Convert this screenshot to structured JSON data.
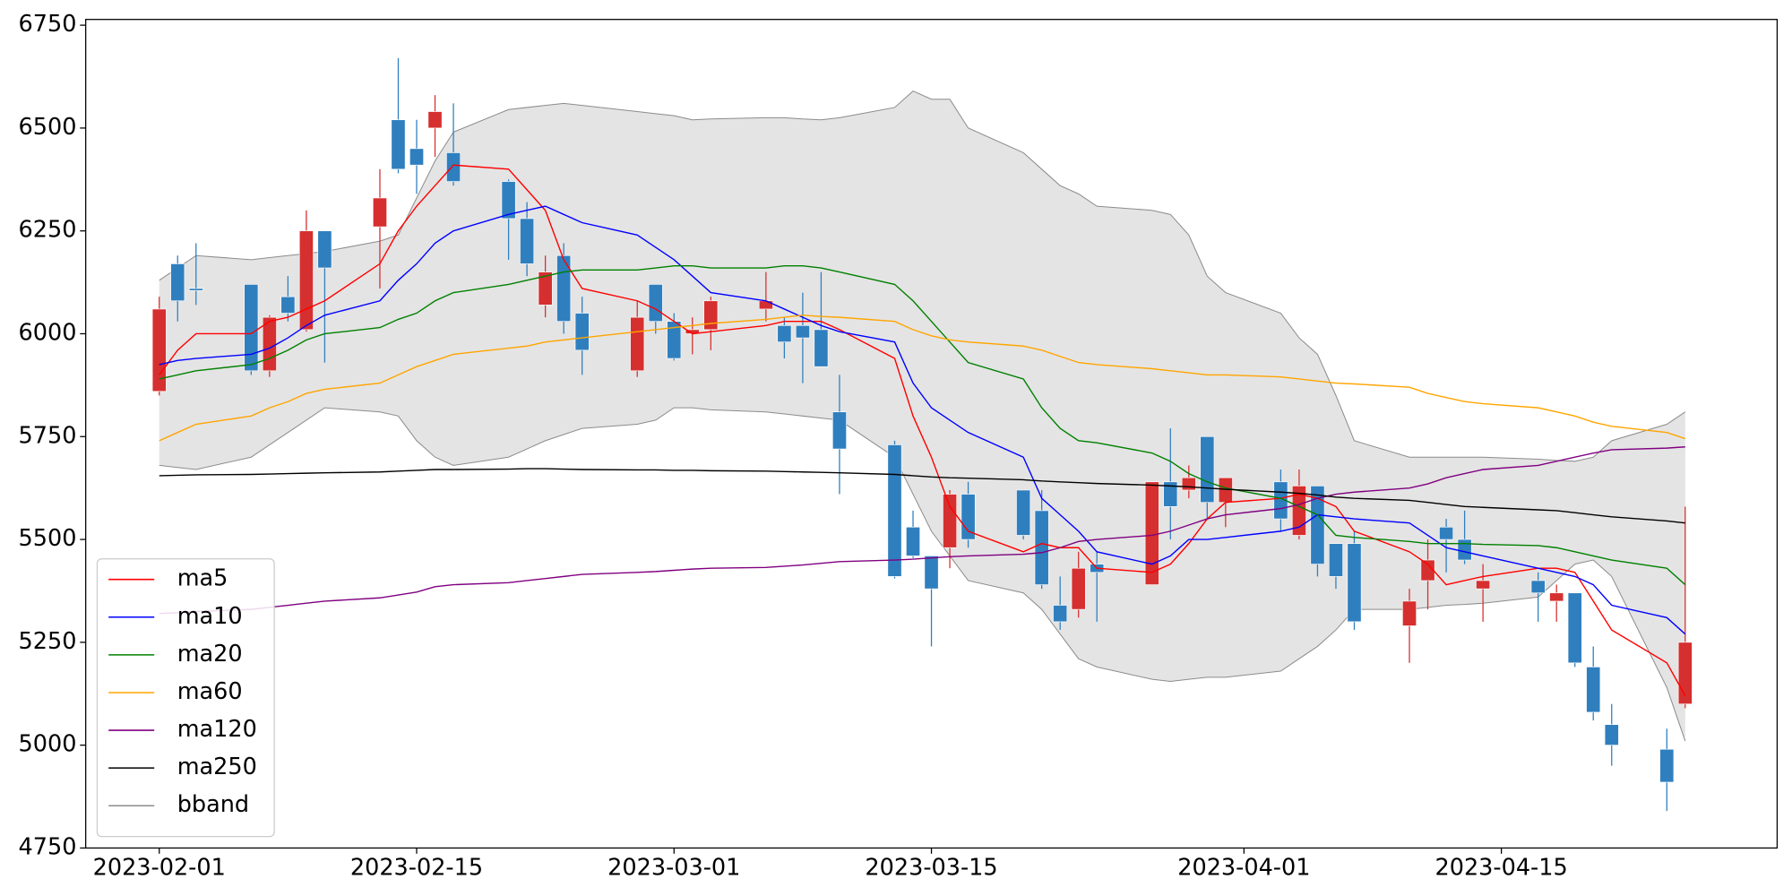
{
  "chart_data": {
    "type": "candlestick",
    "x": [
      "2023-02-01",
      "2023-02-02",
      "2023-02-03",
      "2023-02-06",
      "2023-02-07",
      "2023-02-08",
      "2023-02-09",
      "2023-02-10",
      "2023-02-13",
      "2023-02-14",
      "2023-02-15",
      "2023-02-16",
      "2023-02-17",
      "2023-02-20",
      "2023-02-21",
      "2023-02-22",
      "2023-02-23",
      "2023-02-24",
      "2023-02-27",
      "2023-02-28",
      "2023-03-01",
      "2023-03-02",
      "2023-03-03",
      "2023-03-06",
      "2023-03-07",
      "2023-03-08",
      "2023-03-09",
      "2023-03-10",
      "2023-03-13",
      "2023-03-14",
      "2023-03-15",
      "2023-03-16",
      "2023-03-17",
      "2023-03-20",
      "2023-03-21",
      "2023-03-22",
      "2023-03-23",
      "2023-03-24",
      "2023-03-27",
      "2023-03-28",
      "2023-03-29",
      "2023-03-30",
      "2023-03-31",
      "2023-04-03",
      "2023-04-04",
      "2023-04-05",
      "2023-04-06",
      "2023-04-07",
      "2023-04-10",
      "2023-04-11",
      "2023-04-12",
      "2023-04-13",
      "2023-04-14",
      "2023-04-17",
      "2023-04-18",
      "2023-04-19",
      "2023-04-20",
      "2023-04-21",
      "2023-04-24",
      "2023-04-25"
    ],
    "open": [
      5860,
      6170,
      6110,
      6120,
      5910,
      6090,
      6010,
      6250,
      6260,
      6520,
      6450,
      6500,
      6440,
      6370,
      6280,
      6070,
      6190,
      6050,
      5910,
      6120,
      6030,
      6000,
      6010,
      6060,
      6020,
      6020,
      6010,
      5810,
      5730,
      5530,
      5460,
      5480,
      5610,
      5620,
      5570,
      5340,
      5330,
      5440,
      5390,
      5640,
      5620,
      5750,
      5590,
      5640,
      5510,
      5630,
      5490,
      5490,
      5290,
      5400,
      5530,
      5500,
      5380,
      5400,
      5350,
      5370,
      5190,
      5050,
      4990,
      5100
    ],
    "high": [
      6090,
      6190,
      6220,
      6120,
      6045,
      6140,
      6300,
      6250,
      6400,
      6670,
      6520,
      6580,
      6560,
      6375,
      6320,
      6190,
      6220,
      6090,
      6080,
      6120,
      6050,
      6040,
      6090,
      6150,
      6040,
      6100,
      6150,
      5900,
      5740,
      5570,
      5460,
      5620,
      5640,
      5620,
      5620,
      5410,
      5470,
      5470,
      5640,
      5770,
      5680,
      5750,
      5650,
      5670,
      5670,
      5630,
      5490,
      5520,
      5380,
      5500,
      5550,
      5570,
      5440,
      5420,
      5390,
      5370,
      5240,
      5100,
      5040,
      5580
    ],
    "low": [
      5850,
      6030,
      6070,
      5900,
      5895,
      6030,
      6005,
      5930,
      6110,
      6390,
      6340,
      6430,
      6360,
      6180,
      6140,
      6040,
      6000,
      5900,
      5895,
      6000,
      5935,
      5950,
      5960,
      6030,
      5940,
      5880,
      5920,
      5610,
      5405,
      5455,
      5240,
      5430,
      5480,
      5500,
      5380,
      5280,
      5310,
      5300,
      5390,
      5500,
      5600,
      5550,
      5530,
      5520,
      5500,
      5410,
      5380,
      5280,
      5200,
      5330,
      5420,
      5440,
      5300,
      5300,
      5300,
      5190,
      5060,
      4950,
      4840,
      5090
    ],
    "close": [
      6060,
      6080,
      6105,
      5910,
      6040,
      6050,
      6250,
      6160,
      6330,
      6400,
      6410,
      6540,
      6370,
      6280,
      6170,
      6150,
      6030,
      5960,
      6040,
      6030,
      5940,
      6010,
      6080,
      6080,
      5980,
      5990,
      5920,
      5720,
      5410,
      5460,
      5380,
      5610,
      5500,
      5510,
      5390,
      5300,
      5430,
      5420,
      5640,
      5580,
      5650,
      5590,
      5650,
      5550,
      5630,
      5440,
      5410,
      5300,
      5350,
      5450,
      5500,
      5450,
      5400,
      5370,
      5370,
      5200,
      5080,
      5000,
      4910,
      5250
    ],
    "up_color": "#d62f2f",
    "down_color": "#2f7fbf",
    "series": [
      {
        "name": "ma5",
        "color": "#ff0000",
        "values": [
          5900,
          5960,
          6000,
          6000,
          6030,
          6040,
          6060,
          6080,
          6170,
          6250,
          6310,
          6360,
          6410,
          6400,
          6350,
          6300,
          6180,
          6110,
          6080,
          6060,
          6030,
          6000,
          6005,
          6020,
          6030,
          6030,
          6030,
          6010,
          5940,
          5800,
          5700,
          5580,
          5520,
          5470,
          5490,
          5480,
          5480,
          5430,
          5420,
          5440,
          5490,
          5550,
          5590,
          5600,
          5610,
          5600,
          5580,
          5520,
          5470,
          5440,
          5390,
          5400,
          5410,
          5430,
          5430,
          5420,
          5350,
          5280,
          5200,
          5120
        ]
      },
      {
        "name": "ma10",
        "color": "#0000ff",
        "values": [
          5925,
          5935,
          5940,
          5950,
          5965,
          5990,
          6020,
          6045,
          6080,
          6130,
          6170,
          6220,
          6250,
          6290,
          6300,
          6310,
          6290,
          6270,
          6240,
          6210,
          6180,
          6140,
          6100,
          6080,
          6060,
          6040,
          6020,
          6005,
          5980,
          5880,
          5820,
          5790,
          5760,
          5700,
          5600,
          5560,
          5520,
          5470,
          5440,
          5460,
          5500,
          5500,
          5505,
          5520,
          5530,
          5560,
          5555,
          5550,
          5540,
          5510,
          5480,
          5470,
          5460,
          5430,
          5420,
          5410,
          5390,
          5340,
          5310,
          5270
        ]
      },
      {
        "name": "ma20",
        "color": "#008000",
        "values": [
          5890,
          5900,
          5910,
          5925,
          5940,
          5960,
          5985,
          6000,
          6015,
          6035,
          6050,
          6080,
          6100,
          6120,
          6130,
          6140,
          6150,
          6155,
          6155,
          6160,
          6165,
          6165,
          6160,
          6160,
          6165,
          6165,
          6160,
          6150,
          6120,
          6080,
          6030,
          5980,
          5930,
          5890,
          5820,
          5770,
          5740,
          5735,
          5710,
          5690,
          5660,
          5640,
          5625,
          5600,
          5580,
          5560,
          5510,
          5505,
          5495,
          5490,
          5490,
          5490,
          5488,
          5485,
          5480,
          5470,
          5460,
          5450,
          5430,
          5390
        ]
      },
      {
        "name": "ma60",
        "color": "#ffa500",
        "values": [
          5740,
          5760,
          5780,
          5800,
          5820,
          5835,
          5855,
          5865,
          5880,
          5900,
          5920,
          5935,
          5950,
          5965,
          5970,
          5980,
          5985,
          5990,
          6005,
          6010,
          6015,
          6020,
          6025,
          6035,
          6040,
          6045,
          6042,
          6040,
          6030,
          6010,
          5995,
          5985,
          5980,
          5970,
          5960,
          5945,
          5930,
          5925,
          5915,
          5910,
          5905,
          5900,
          5900,
          5895,
          5890,
          5885,
          5880,
          5878,
          5870,
          5855,
          5845,
          5835,
          5830,
          5820,
          5810,
          5800,
          5785,
          5775,
          5760,
          5745
        ]
      },
      {
        "name": "ma120",
        "color": "#800080",
        "values": [
          5320,
          5322,
          5325,
          5330,
          5335,
          5340,
          5345,
          5350,
          5358,
          5365,
          5372,
          5385,
          5390,
          5395,
          5400,
          5405,
          5410,
          5415,
          5420,
          5422,
          5425,
          5428,
          5430,
          5432,
          5435,
          5438,
          5442,
          5446,
          5450,
          5452,
          5455,
          5458,
          5460,
          5464,
          5468,
          5480,
          5495,
          5500,
          5510,
          5520,
          5535,
          5550,
          5560,
          5575,
          5585,
          5600,
          5610,
          5615,
          5625,
          5635,
          5650,
          5660,
          5670,
          5680,
          5690,
          5700,
          5710,
          5718,
          5722,
          5725
        ]
      },
      {
        "name": "ma250",
        "color": "#000000",
        "values": [
          5655,
          5656,
          5657,
          5658,
          5659,
          5660,
          5661,
          5662,
          5664,
          5666,
          5668,
          5670,
          5670,
          5671,
          5672,
          5672,
          5671,
          5670,
          5669,
          5669,
          5668,
          5668,
          5667,
          5666,
          5665,
          5664,
          5663,
          5662,
          5658,
          5655,
          5652,
          5650,
          5649,
          5645,
          5642,
          5640,
          5638,
          5636,
          5632,
          5630,
          5628,
          5625,
          5622,
          5615,
          5612,
          5608,
          5603,
          5600,
          5595,
          5590,
          5585,
          5580,
          5578,
          5572,
          5570,
          5565,
          5560,
          5555,
          5545,
          5540
        ]
      }
    ],
    "band": {
      "name": "bband",
      "color": "#8c8c8c",
      "fill": "#e4e4e4",
      "upper": [
        6130,
        6160,
        6190,
        6180,
        6185,
        6190,
        6195,
        6200,
        6225,
        6240,
        6330,
        6420,
        6490,
        6545,
        6550,
        6555,
        6560,
        6555,
        6540,
        6535,
        6530,
        6520,
        6522,
        6525,
        6525,
        6522,
        6520,
        6525,
        6550,
        6590,
        6570,
        6570,
        6500,
        6440,
        6400,
        6360,
        6340,
        6310,
        6300,
        6290,
        6240,
        6140,
        6100,
        6050,
        5990,
        5950,
        5850,
        5740,
        5700,
        5700,
        5700,
        5700,
        5700,
        5695,
        5692,
        5690,
        5700,
        5740,
        5780,
        5810
      ],
      "lower": [
        5680,
        5675,
        5670,
        5700,
        5730,
        5760,
        5790,
        5820,
        5810,
        5800,
        5740,
        5700,
        5680,
        5700,
        5720,
        5740,
        5755,
        5770,
        5780,
        5790,
        5820,
        5820,
        5815,
        5810,
        5805,
        5800,
        5795,
        5790,
        5700,
        5610,
        5520,
        5460,
        5400,
        5370,
        5330,
        5270,
        5210,
        5190,
        5160,
        5155,
        5160,
        5165,
        5165,
        5180,
        5210,
        5240,
        5280,
        5330,
        5330,
        5335,
        5340,
        5342,
        5345,
        5360,
        5400,
        5440,
        5450,
        5410,
        5140,
        5010
      ]
    },
    "xlim": [
      "2023-01-28",
      "2023-04-30"
    ],
    "xticks": [
      "2023-02-01",
      "2023-02-15",
      "2023-03-01",
      "2023-03-15",
      "2023-04-01",
      "2023-04-15"
    ],
    "ylim": [
      4750,
      6764
    ],
    "yticks": [
      4750,
      5000,
      5250,
      5500,
      5750,
      6000,
      6250,
      6500,
      6750
    ],
    "legend": "lower left"
  }
}
